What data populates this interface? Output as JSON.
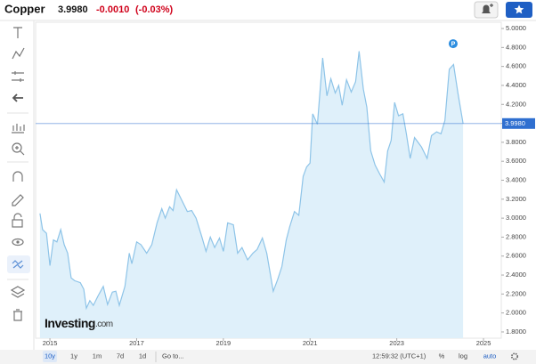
{
  "header": {
    "title": "Copper",
    "change": "-0.0010",
    "change_percent": "(-0.03%)"
  },
  "chart_data": {
    "type": "area",
    "color": "#8ec4e8",
    "fill": "#dff0fa",
    "x": [
      2014.77,
      2014.83,
      2014.92,
      2015.0,
      2015.08,
      2015.16,
      2015.25,
      2015.33,
      2015.41,
      2015.49,
      2015.57,
      2015.7,
      2015.78,
      2015.84,
      2015.92,
      2016.0,
      2016.11,
      2016.23,
      2016.33,
      2016.44,
      2016.52,
      2016.6,
      2016.73,
      2016.83,
      2016.89,
      2017.0,
      2017.1,
      2017.23,
      2017.35,
      2017.47,
      2017.58,
      2017.66,
      2017.76,
      2017.84,
      2017.92,
      2018.04,
      2018.17,
      2018.27,
      2018.37,
      2018.5,
      2018.6,
      2018.7,
      2018.8,
      2018.91,
      2019.0,
      2019.1,
      2019.23,
      2019.33,
      2019.43,
      2019.56,
      2019.68,
      2019.78,
      2019.9,
      2020.0,
      2020.15,
      2020.25,
      2020.35,
      2020.45,
      2020.53,
      2020.64,
      2020.74,
      2020.84,
      2020.92,
      2021.0,
      2021.06,
      2021.17,
      2021.29,
      2021.39,
      2021.48,
      2021.58,
      2021.66,
      2021.74,
      2021.84,
      2021.95,
      2022.05,
      2022.13,
      2022.23,
      2022.31,
      2022.4,
      2022.5,
      2022.6,
      2022.71,
      2022.79,
      2022.87,
      2022.95,
      2023.04,
      2023.14,
      2023.22,
      2023.31,
      2023.41,
      2023.49,
      2023.57,
      2023.7,
      2023.8,
      2023.92,
      2024.02,
      2024.11,
      2024.21,
      2024.31,
      2024.41,
      2024.53
    ],
    "values": [
      3.05,
      2.88,
      2.84,
      2.5,
      2.77,
      2.75,
      2.88,
      2.72,
      2.63,
      2.37,
      2.34,
      2.32,
      2.25,
      2.05,
      2.13,
      2.08,
      2.18,
      2.28,
      2.09,
      2.22,
      2.23,
      2.08,
      2.28,
      2.63,
      2.52,
      2.75,
      2.72,
      2.63,
      2.72,
      2.95,
      3.1,
      3.0,
      3.12,
      3.08,
      3.3,
      3.19,
      3.07,
      3.08,
      3.0,
      2.81,
      2.65,
      2.8,
      2.69,
      2.79,
      2.65,
      2.95,
      2.93,
      2.63,
      2.69,
      2.56,
      2.63,
      2.67,
      2.79,
      2.63,
      2.23,
      2.35,
      2.49,
      2.77,
      2.91,
      3.07,
      3.03,
      3.44,
      3.54,
      3.58,
      4.1,
      3.99,
      4.69,
      4.29,
      4.47,
      4.32,
      4.4,
      4.19,
      4.46,
      4.33,
      4.44,
      4.76,
      4.36,
      4.17,
      3.71,
      3.56,
      3.47,
      3.38,
      3.71,
      3.82,
      4.22,
      4.08,
      4.1,
      3.89,
      3.63,
      3.85,
      3.8,
      3.75,
      3.63,
      3.87,
      3.91,
      3.89,
      4.03,
      4.57,
      4.62,
      4.32,
      3.998
    ],
    "xlim": [
      2014.67,
      2025.41
    ],
    "xticks": [
      2015,
      2017,
      2019,
      2021,
      2023,
      2025
    ],
    "ylim": [
      1.734,
      5.066
    ],
    "yticks": [
      {
        "value": 1.8,
        "label": "1.8000"
      },
      {
        "value": 2.0,
        "label": "2.0000"
      },
      {
        "value": 2.2,
        "label": "2.2000"
      },
      {
        "value": 2.4,
        "label": "2.4000"
      },
      {
        "value": 2.6,
        "label": "2.6000"
      },
      {
        "value": 2.8,
        "label": "2.8000"
      },
      {
        "value": 3.0,
        "label": "3.0000"
      },
      {
        "value": 3.2,
        "label": "3.2000"
      },
      {
        "value": 3.4,
        "label": "3.4000"
      },
      {
        "value": 3.6,
        "label": "3.6000"
      },
      {
        "value": 3.8,
        "label": "3.8000"
      },
      {
        "value": 4.0,
        "label": "4.0000"
      },
      {
        "value": 4.2,
        "label": "4.2000"
      },
      {
        "value": 4.4,
        "label": "4.4000"
      },
      {
        "value": 4.6,
        "label": "4.6000"
      },
      {
        "value": 4.8,
        "label": "4.8000"
      },
      {
        "value": 5.0,
        "label": "5.0000"
      }
    ],
    "price_line": {
      "value": 3.998,
      "label": "3.9980",
      "color": "#2f6fd0"
    },
    "marker": {
      "label": "P",
      "x": 2024.3,
      "value": 4.84
    },
    "watermark": {
      "brand": "Investing",
      "suffix": ".com"
    }
  },
  "footer": {
    "ranges": [
      "10y",
      "1y",
      "1m",
      "7d",
      "1d"
    ],
    "goto": "Go to...",
    "time": "12:59:32 (UTC+1)",
    "toggles": [
      "%",
      "log",
      "auto"
    ]
  }
}
